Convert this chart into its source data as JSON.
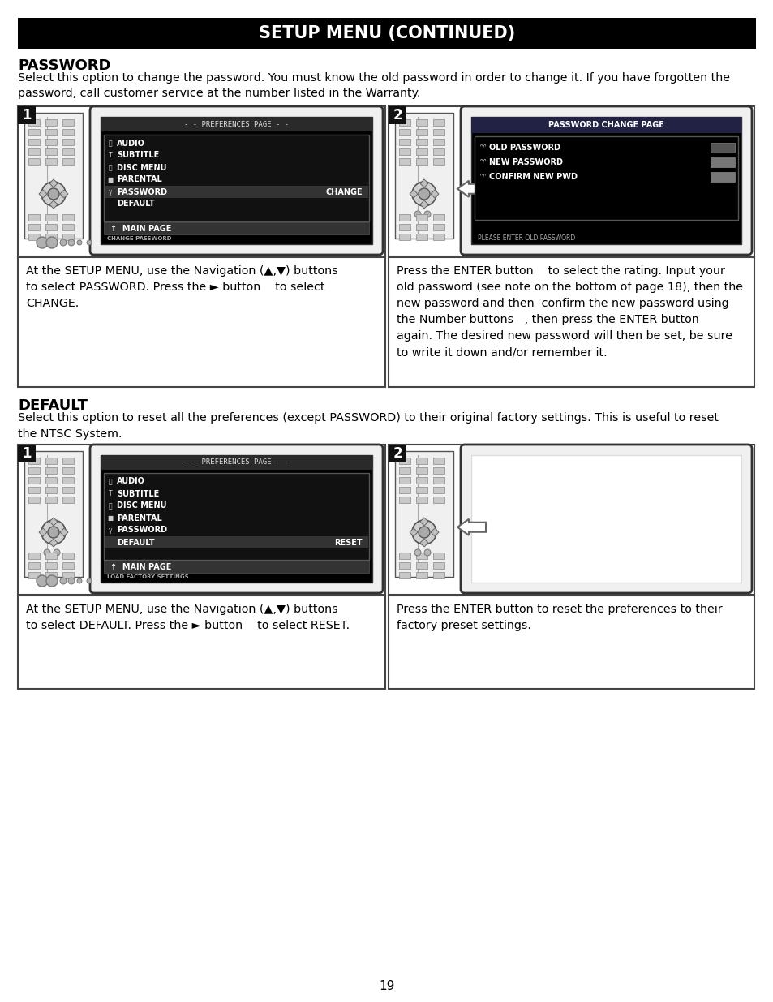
{
  "title": "SETUP MENU (CONTINUED)",
  "bg_color": "#ffffff",
  "title_bg": "#000000",
  "title_fg": "#ffffff",
  "section1_heading": "PASSWORD",
  "section1_desc": "Select this option to change the password. You must know the old password in order to change it. If you have forgotten the\npassword, call customer service at the number listed in the Warranty.",
  "section2_heading": "DEFAULT",
  "section2_desc": "Select this option to reset all the preferences (except PASSWORD) to their original factory settings. This is useful to reset\nthe NTSC System.",
  "pw_caption1": "At the SETUP MENU, use the Navigation (▲,▼) buttons\nto select PASSWORD. Press the ► button    to select\nCHANGE.",
  "pw_caption2": "Press the ENTER button    to select the rating. Input your\nold password (see note on the bottom of page 18), then the\nnew password and then  confirm the new password using\nthe Number buttons   , then press the ENTER button\nagain. The desired new password will then be set, be sure\nto write it down and/or remember it.",
  "def_caption1": "At the SETUP MENU, use the Navigation (▲,▼) buttons\nto select DEFAULT. Press the ► button    to select RESET.",
  "def_caption2": "Press the ENTER button to reset the preferences to their\nfactory preset settings.",
  "page_number": "19",
  "prefs_menu_items": [
    "AUDIO",
    "SUBTITLE",
    "DISC MENU",
    "PARENTAL",
    "PASSWORD",
    "DEFAULT"
  ],
  "prefs_menu_highlight": "PASSWORD",
  "prefs_menu_change": "CHANGE",
  "prefs_menu_bottom": "MAIN PAGE",
  "prefs_menu_bottom2": "CHANGE PASSWORD",
  "prefs_menu2_items": [
    "AUDIO",
    "SUBTITLE",
    "DISC MENU",
    "PARENTAL",
    "PASSWORD",
    "DEFAULT"
  ],
  "prefs_menu2_highlight": "DEFAULT",
  "prefs_menu2_change": "RESET",
  "prefs_menu2_bottom": "MAIN PAGE",
  "prefs_menu2_bottom2": "LOAD FACTORY SETTINGS",
  "pwd_change_title": "PASSWORD CHANGE PAGE",
  "pwd_change_items": [
    "OLD PASSWORD",
    "NEW PASSWORD",
    "CONFIRM NEW PWD"
  ],
  "pwd_change_bottom": "PLEASE ENTER OLD PASSWORD",
  "menu_icons": [
    "⦿",
    "T",
    "⦿",
    "■",
    "⭐",
    ""
  ],
  "menu_icons2": [
    "⦿",
    "T",
    "⦿",
    "■",
    "⭐",
    ""
  ]
}
